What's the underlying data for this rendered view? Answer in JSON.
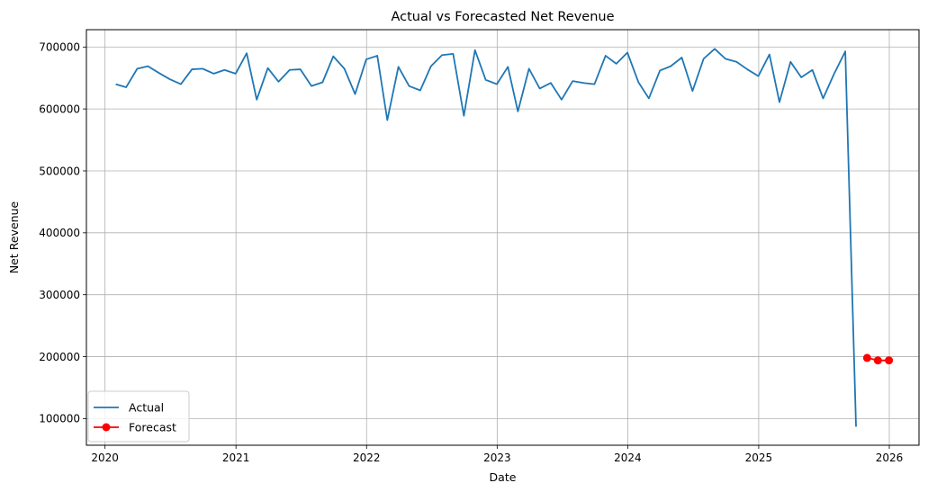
{
  "chart_data": {
    "type": "line",
    "title": "Actual vs Forecasted Net Revenue",
    "xlabel": "Date",
    "ylabel": "Net Revenue",
    "x_ticks": [
      "2020",
      "2021",
      "2022",
      "2023",
      "2024",
      "2025",
      "2026"
    ],
    "y_ticks": [
      "100000",
      "200000",
      "300000",
      "400000",
      "500000",
      "600000",
      "700000"
    ],
    "ylim": [
      57000,
      728000
    ],
    "xlim": [
      "2019-11-10",
      "2026-03-25"
    ],
    "grid": true,
    "legend_position": "lower-left",
    "series": [
      {
        "name": "Actual",
        "color": "#1f77b4",
        "marker": "none",
        "points": [
          [
            "2020-01-31",
            640000
          ],
          [
            "2020-02-29",
            635000
          ],
          [
            "2020-03-31",
            665000
          ],
          [
            "2020-04-30",
            669000
          ],
          [
            "2020-05-31",
            658000
          ],
          [
            "2020-06-30",
            648000
          ],
          [
            "2020-07-31",
            640000
          ],
          [
            "2020-08-31",
            664000
          ],
          [
            "2020-09-30",
            665000
          ],
          [
            "2020-10-31",
            657000
          ],
          [
            "2020-11-30",
            663000
          ],
          [
            "2020-12-31",
            657000
          ],
          [
            "2021-01-31",
            690000
          ],
          [
            "2021-02-28",
            615000
          ],
          [
            "2021-03-31",
            666000
          ],
          [
            "2021-04-30",
            644000
          ],
          [
            "2021-05-31",
            663000
          ],
          [
            "2021-06-30",
            664000
          ],
          [
            "2021-07-31",
            637000
          ],
          [
            "2021-08-31",
            643000
          ],
          [
            "2021-09-30",
            685000
          ],
          [
            "2021-10-31",
            665000
          ],
          [
            "2021-11-30",
            624000
          ],
          [
            "2021-12-31",
            680000
          ],
          [
            "2022-01-31",
            686000
          ],
          [
            "2022-02-28",
            582000
          ],
          [
            "2022-03-31",
            668000
          ],
          [
            "2022-04-30",
            637000
          ],
          [
            "2022-05-31",
            630000
          ],
          [
            "2022-06-30",
            669000
          ],
          [
            "2022-07-31",
            687000
          ],
          [
            "2022-08-31",
            689000
          ],
          [
            "2022-09-30",
            589000
          ],
          [
            "2022-10-31",
            695000
          ],
          [
            "2022-11-30",
            647000
          ],
          [
            "2022-12-31",
            640000
          ],
          [
            "2023-01-31",
            668000
          ],
          [
            "2023-02-28",
            596000
          ],
          [
            "2023-03-31",
            665000
          ],
          [
            "2023-04-30",
            633000
          ],
          [
            "2023-05-31",
            642000
          ],
          [
            "2023-06-30",
            615000
          ],
          [
            "2023-07-31",
            645000
          ],
          [
            "2023-08-31",
            642000
          ],
          [
            "2023-09-30",
            640000
          ],
          [
            "2023-10-31",
            686000
          ],
          [
            "2023-11-30",
            673000
          ],
          [
            "2023-12-31",
            691000
          ],
          [
            "2024-01-31",
            643000
          ],
          [
            "2024-02-29",
            617000
          ],
          [
            "2024-03-31",
            662000
          ],
          [
            "2024-04-30",
            669000
          ],
          [
            "2024-05-31",
            683000
          ],
          [
            "2024-06-30",
            629000
          ],
          [
            "2024-07-31",
            681000
          ],
          [
            "2024-08-31",
            697000
          ],
          [
            "2024-09-30",
            681000
          ],
          [
            "2024-10-31",
            676000
          ],
          [
            "2024-11-30",
            664000
          ],
          [
            "2024-12-31",
            653000
          ],
          [
            "2025-01-31",
            688000
          ],
          [
            "2025-02-28",
            611000
          ],
          [
            "2025-03-31",
            676000
          ],
          [
            "2025-04-30",
            651000
          ],
          [
            "2025-05-31",
            663000
          ],
          [
            "2025-06-30",
            617000
          ],
          [
            "2025-07-31",
            657000
          ],
          [
            "2025-08-31",
            693000
          ],
          [
            "2025-09-30",
            87000
          ]
        ]
      },
      {
        "name": "Forecast",
        "color": "#ff0000",
        "marker": "circle",
        "points": [
          [
            "2025-10-31",
            198000
          ],
          [
            "2025-11-30",
            194000
          ],
          [
            "2025-12-31",
            194000
          ]
        ]
      }
    ]
  }
}
